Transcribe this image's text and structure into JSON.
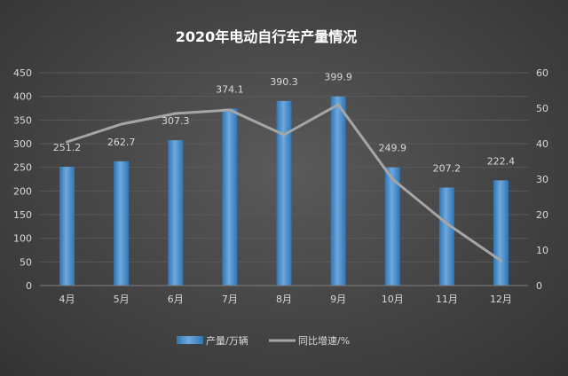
{
  "chart_data": {
    "type": "bar",
    "title": "2020年电动自行车产量情况",
    "categories": [
      "4月",
      "5月",
      "6月",
      "7月",
      "8月",
      "9月",
      "10月",
      "11月",
      "12月"
    ],
    "series": [
      {
        "name": "产量/万辆",
        "type": "bar",
        "axis": "left",
        "values": [
          251.2,
          262.7,
          307.3,
          374.1,
          390.3,
          399.9,
          249.9,
          207.2,
          222.4
        ],
        "labels": [
          "251.2",
          "262.7",
          "307.3",
          "374.1",
          "390.3",
          "399.9",
          "249.9",
          "207.2",
          "222.4"
        ]
      },
      {
        "name": "同比增速/%",
        "type": "line",
        "axis": "right",
        "values": [
          40.5,
          45.5,
          48.5,
          49.5,
          42.5,
          51,
          30,
          17.5,
          7
        ]
      }
    ],
    "y_left": {
      "min": 0,
      "max": 450,
      "ticks": [
        "0",
        "50",
        "100",
        "150",
        "200",
        "250",
        "300",
        "350",
        "400",
        "450"
      ]
    },
    "y_right": {
      "min": 0,
      "max": 60,
      "ticks": [
        "0",
        "10",
        "20",
        "30",
        "40",
        "50",
        "60"
      ]
    },
    "grid": true,
    "legend": "bottom-center",
    "colors": {
      "bar": "#5b9bd5",
      "bar_dark": "#2e75b6",
      "line": "#a6a6a6",
      "text": "#d9d9d9",
      "grid": "#595959"
    }
  }
}
